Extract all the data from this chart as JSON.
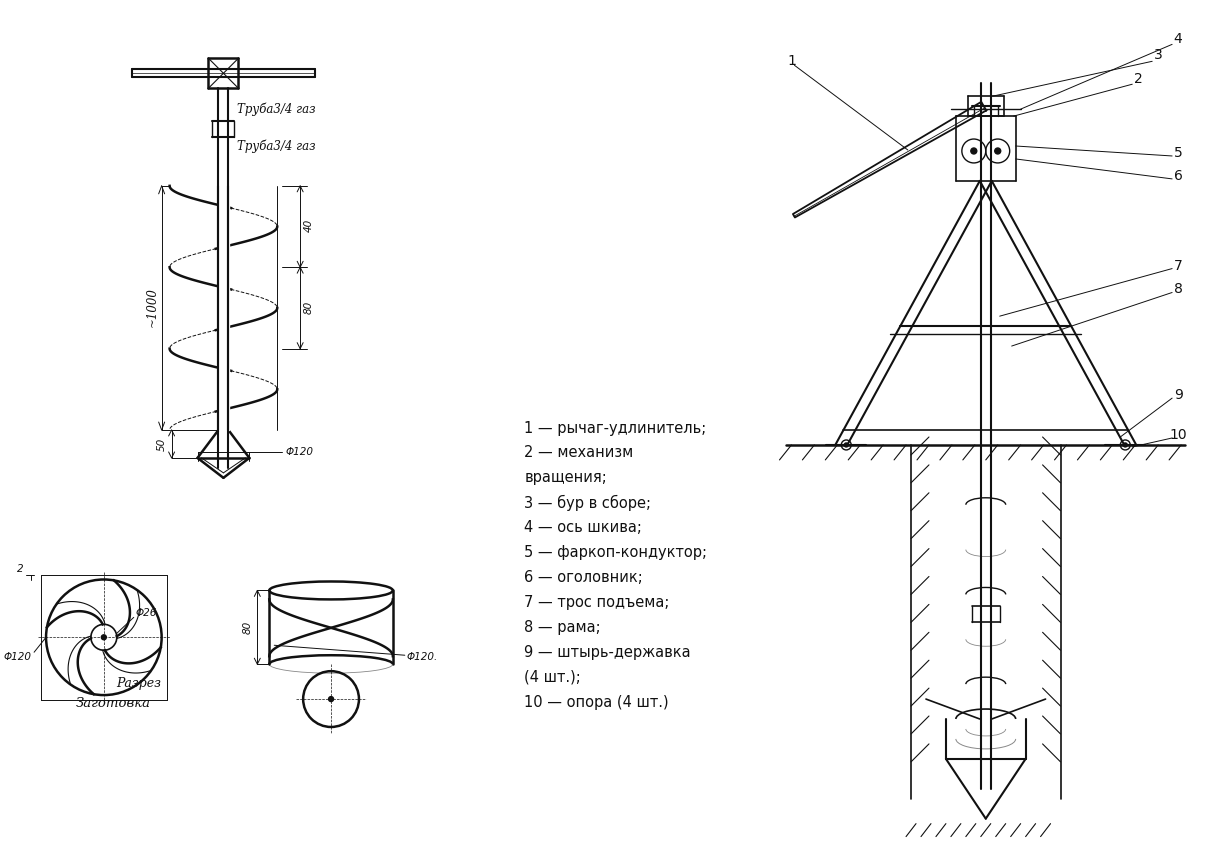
{
  "bg_color": "#ffffff",
  "lc": "#111111",
  "legend_lines": [
    "1 — рычаг-удлинитель;",
    "2 — механизм",
    "вращения;",
    "3 — бур в сборе;",
    "4 — ось шкива;",
    "5 — фаркоп-кондуктор;",
    "6 — оголовник;",
    "7 — трос подъема;",
    "8 — рама;",
    "9 — штырь-державка",
    "(4 шт.);",
    "10 — опора (4 шт.)"
  ],
  "label_truba1": "Труба3/4 газ",
  "label_truba2": "Труба3/4 газ",
  "label_razrez": "Разрез",
  "label_zagotovka": "Заготовка",
  "dim_1000": "~1000",
  "dim_40": "40",
  "dim_80": "80",
  "dim_phi120": "Φ120",
  "dim_phi120dot": "Φ120.",
  "dim_phi26": "Φ26",
  "dim_phi120_left": "Φ120"
}
